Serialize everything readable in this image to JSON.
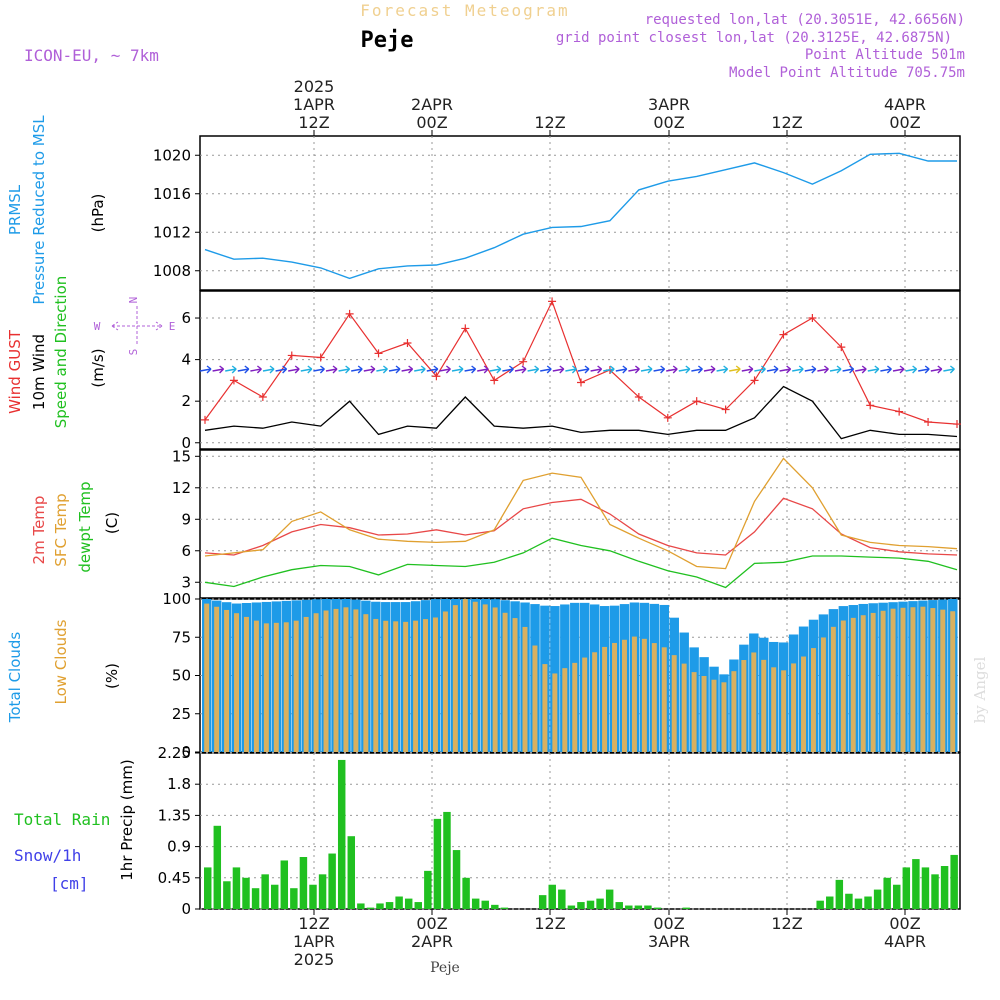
{
  "header": {
    "title": "Forecast Meteogram",
    "location": "Peje",
    "model": "ICON-EU, ~ 7km",
    "requested": "requested lon,lat (20.3051E, 42.6656N)",
    "gridpoint": "grid point closest lon,lat (20.3125E, 42.6875N)",
    "point_alt": "Point Altitude 501m",
    "model_alt": "Model Point Altitude 705.75m",
    "footer_location": "Peje",
    "credit": "by Angel"
  },
  "time_axis": {
    "top_labels": [
      {
        "lines": [
          "2025",
          "1APR",
          "12Z"
        ]
      },
      {
        "lines": [
          "2APR",
          "00Z"
        ]
      },
      {
        "lines": [
          "12Z"
        ]
      },
      {
        "lines": [
          "3APR",
          "00Z"
        ]
      },
      {
        "lines": [
          "12Z"
        ]
      },
      {
        "lines": [
          "4APR",
          "00Z"
        ]
      }
    ],
    "bottom_labels": [
      {
        "lines": [
          "12Z",
          "1APR",
          "2025"
        ]
      },
      {
        "lines": [
          "00Z",
          "2APR"
        ]
      },
      {
        "lines": [
          "12Z"
        ]
      },
      {
        "lines": [
          "00Z",
          "3APR"
        ]
      },
      {
        "lines": [
          "12Z"
        ]
      },
      {
        "lines": [
          "00Z",
          "4APR"
        ]
      }
    ]
  },
  "panel_labels": {
    "pressure": {
      "name1": "PRMSL",
      "name2": "Pressure Reduced to MSL",
      "unit": "(hPa)"
    },
    "wind": {
      "gust": "Wind GUST",
      "wind10": "10m Wind",
      "dir": "Speed and Direction",
      "unit": "(m/s)",
      "compass_n": "N",
      "compass_s": "S",
      "compass_w": "W",
      "compass_e": "E"
    },
    "temp": {
      "t2m": "2m Temp",
      "sfc": "SFC Temp",
      "dew": "dewpt Temp",
      "unit": "(C)"
    },
    "clouds": {
      "total": "Total Clouds",
      "low": "Low Clouds",
      "unit": "(%)"
    },
    "precip": {
      "rain": "Total  Rain",
      "snow": "Snow/1h",
      "snow_unit": "[cm]",
      "name": "1hr Precip (mm)"
    }
  },
  "colors": {
    "pressure": "#1e9be8",
    "gust": "#e83030",
    "wind": "#000000",
    "temp2m": "#e84848",
    "sfc": "#e0a030",
    "dew": "#20c020",
    "total_cloud": "#1e9be8",
    "low_cloud": "#d8b060",
    "precip": "#20c020",
    "purple": "#b060d8",
    "snow": "#4040e8"
  },
  "chart_data": [
    {
      "type": "line",
      "title": "PRMSL Pressure Reduced to MSL",
      "ylabel": "(hPa)",
      "ylim": [
        1006,
        1022
      ],
      "yticks": [
        1008,
        1012,
        1016,
        1020
      ],
      "x_hours_from_start": [
        0,
        3,
        6,
        9,
        12,
        15,
        18,
        21,
        24,
        27,
        30,
        33,
        36,
        39,
        42,
        45,
        48,
        51,
        54,
        57,
        60,
        63,
        66,
        69,
        72,
        75,
        78
      ],
      "series": [
        {
          "values": [
            1010.2,
            1009.2,
            1009.3,
            1008.9,
            1008.3,
            1007.2,
            1008.2,
            1008.5,
            1008.6,
            1009.3,
            1010.4,
            1011.8,
            1012.5,
            1012.6,
            1013.2,
            1016.4,
            1017.3,
            1017.8,
            1018.5,
            1019.2,
            1018.2,
            1017.0,
            1018.4,
            1020.1,
            1020.2,
            1019.4,
            1019.4
          ]
        }
      ]
    },
    {
      "type": "line",
      "title": "Wind GUST / 10m Wind Speed and Direction",
      "ylabel": "(m/s)",
      "ylim": [
        -0.3,
        7.3
      ],
      "yticks": [
        0,
        2,
        4,
        6
      ],
      "x_hours_from_start": [
        0,
        3,
        6,
        9,
        12,
        15,
        18,
        21,
        24,
        27,
        30,
        33,
        36,
        39,
        42,
        45,
        48,
        51,
        54,
        57,
        60,
        63,
        66,
        69,
        72,
        75,
        78
      ],
      "series": [
        {
          "name": "Wind GUST",
          "values": [
            1.1,
            3.0,
            2.2,
            4.2,
            4.1,
            6.2,
            4.3,
            4.8,
            3.2,
            5.5,
            3.0,
            3.9,
            6.8,
            2.9,
            3.5,
            2.2,
            1.2,
            2.0,
            1.6,
            3.0,
            5.2,
            6.0,
            4.6,
            1.8,
            1.5,
            1.0,
            0.9
          ]
        },
        {
          "name": "10m Wind",
          "values": [
            0.6,
            0.8,
            0.7,
            1.0,
            0.8,
            2.0,
            0.4,
            0.8,
            0.7,
            2.2,
            0.8,
            0.7,
            0.8,
            0.5,
            0.6,
            0.6,
            0.4,
            0.6,
            0.6,
            1.2,
            2.7,
            2.0,
            0.2,
            0.6,
            0.4,
            0.4,
            0.3
          ]
        }
      ]
    },
    {
      "type": "line",
      "title": "2m Temp / SFC Temp / dewpt Temp",
      "ylabel": "(C)",
      "ylim": [
        1.5,
        15.6
      ],
      "yticks": [
        3,
        6,
        9,
        12,
        15
      ],
      "x_hours_from_start": [
        0,
        3,
        6,
        9,
        12,
        15,
        18,
        21,
        24,
        27,
        30,
        33,
        36,
        39,
        42,
        45,
        48,
        51,
        54,
        57,
        60,
        63,
        66,
        69,
        72,
        75,
        78
      ],
      "series": [
        {
          "name": "2m Temp",
          "values": [
            5.8,
            5.6,
            6.5,
            7.8,
            8.5,
            8.2,
            7.5,
            7.6,
            8.0,
            7.5,
            7.9,
            10.0,
            10.6,
            10.9,
            9.5,
            7.6,
            6.5,
            5.8,
            5.6,
            7.8,
            11.0,
            10.0,
            7.6,
            6.3,
            5.9,
            5.7,
            5.6
          ]
        },
        {
          "name": "SFC Temp",
          "values": [
            5.5,
            5.8,
            6.1,
            8.8,
            9.7,
            8.0,
            7.1,
            6.9,
            6.8,
            6.9,
            8.0,
            12.7,
            13.4,
            13.0,
            8.5,
            7.2,
            6.0,
            4.5,
            4.3,
            10.7,
            14.8,
            12.0,
            7.5,
            6.8,
            6.5,
            6.4,
            6.2
          ]
        },
        {
          "name": "dewpt Temp",
          "values": [
            3.0,
            2.6,
            3.5,
            4.2,
            4.6,
            4.5,
            3.7,
            4.7,
            4.6,
            4.5,
            4.9,
            5.8,
            7.2,
            6.5,
            6.0,
            5.0,
            4.1,
            3.5,
            2.5,
            4.8,
            4.9,
            5.5,
            5.5,
            5.4,
            5.3,
            5.0,
            4.2
          ]
        }
      ]
    },
    {
      "type": "bar",
      "title": "Total Clouds / Low Clouds",
      "ylabel": "(%)",
      "ylim": [
        0,
        100
      ],
      "yticks": [
        0,
        25,
        50,
        75,
        100
      ],
      "x_hours_from_start": [
        0,
        3,
        6,
        9,
        12,
        15,
        18,
        21,
        24,
        27,
        30,
        33,
        36,
        39,
        42,
        45,
        48,
        51,
        54,
        57,
        60,
        63,
        66,
        69,
        72,
        75,
        78
      ],
      "series": [
        {
          "name": "Total Clouds",
          "values": [
            100,
            97,
            98,
            99,
            100,
            100,
            98,
            98,
            100,
            100,
            100,
            98,
            95,
            98,
            95,
            98,
            96,
            68,
            50,
            78,
            70,
            85,
            95,
            97,
            98,
            99,
            100
          ]
        },
        {
          "name": "Low Clouds",
          "values": [
            97,
            91,
            84,
            85,
            92,
            95,
            86,
            85,
            88,
            100,
            95,
            85,
            50,
            60,
            70,
            76,
            68,
            52,
            45,
            66,
            52,
            65,
            85,
            90,
            94,
            95,
            92
          ]
        }
      ]
    },
    {
      "type": "bar",
      "title": "1hr Precip (mm)",
      "ylabel": "1hr Precip (mm)",
      "ylim": [
        0,
        2.25
      ],
      "yticks": [
        0,
        0.45,
        0.9,
        1.35,
        1.8,
        2.25
      ],
      "x_hours_from_start": [
        0,
        1,
        2,
        3,
        4,
        5,
        6,
        7,
        8,
        9,
        10,
        11,
        12,
        13,
        14,
        15,
        16,
        17,
        18,
        19,
        20,
        21,
        22,
        23,
        24,
        25,
        26,
        27,
        28,
        29,
        30,
        31,
        32,
        33,
        34,
        35,
        36,
        37,
        38,
        39,
        40,
        41,
        42,
        43,
        44,
        45,
        46,
        47,
        48,
        49,
        50,
        51,
        52,
        53,
        54,
        55,
        56,
        57,
        58,
        59,
        60,
        61,
        62,
        63,
        64,
        65,
        66,
        67,
        68,
        69,
        70,
        71,
        72,
        73,
        74,
        75,
        76,
        77,
        78
      ],
      "series": [
        {
          "name": "1hr Precip",
          "values": [
            0.6,
            1.2,
            0.4,
            0.6,
            0.45,
            0.3,
            0.5,
            0.35,
            0.7,
            0.3,
            0.75,
            0.35,
            0.5,
            0.8,
            2.15,
            1.05,
            0.08,
            0.02,
            0.08,
            0.1,
            0.18,
            0.15,
            0.1,
            0.55,
            1.3,
            1.4,
            0.85,
            0.45,
            0.15,
            0.12,
            0.06,
            0.02,
            0.0,
            0.0,
            0.0,
            0.2,
            0.35,
            0.28,
            0.05,
            0.1,
            0.12,
            0.15,
            0.28,
            0.1,
            0.05,
            0.05,
            0.05,
            0.02,
            0.0,
            0.0,
            0.02,
            0.0,
            0.0,
            0.0,
            0.0,
            0.0,
            0.0,
            0.0,
            0.0,
            0.0,
            0.0,
            0.0,
            0.0,
            0.0,
            0.12,
            0.18,
            0.42,
            0.22,
            0.15,
            0.18,
            0.28,
            0.45,
            0.35,
            0.6,
            0.72,
            0.6,
            0.5,
            0.62,
            0.78
          ]
        }
      ]
    }
  ]
}
